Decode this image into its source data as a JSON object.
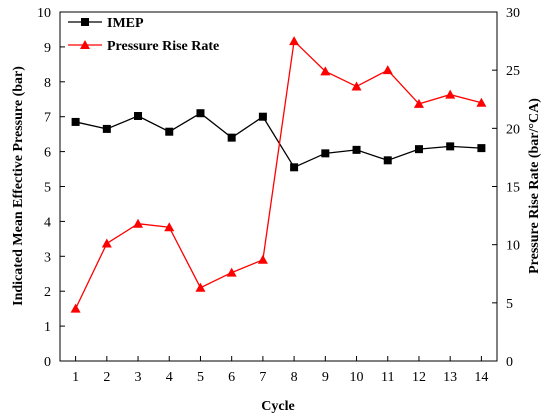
{
  "chart_data": {
    "type": "line",
    "x": [
      1,
      2,
      3,
      4,
      5,
      6,
      7,
      8,
      9,
      10,
      11,
      12,
      13,
      14
    ],
    "xlabel": "Cycle",
    "ylabel": "Indicated Mean Effective Pressure (bar)",
    "y2label": "Pressure Rise Rate (bar/°CA)",
    "xlim": [
      0.5,
      14.5
    ],
    "ylim": [
      0,
      10
    ],
    "y2lim": [
      0,
      30
    ],
    "x_ticks": [
      1,
      2,
      3,
      4,
      5,
      6,
      7,
      8,
      9,
      10,
      11,
      12,
      13,
      14
    ],
    "y_ticks": [
      0,
      1,
      2,
      3,
      4,
      5,
      6,
      7,
      8,
      9,
      10
    ],
    "y2_ticks": [
      0,
      5,
      10,
      15,
      20,
      25,
      30
    ],
    "grid": false,
    "legend_position": "top-left",
    "series": [
      {
        "name": "IMEP",
        "axis": "left",
        "color": "#000000",
        "marker": "square",
        "values": [
          6.85,
          6.65,
          7.02,
          6.57,
          7.1,
          6.4,
          7.0,
          5.55,
          5.95,
          6.05,
          5.75,
          6.07,
          6.15,
          6.1
        ]
      },
      {
        "name": "Pressure Rise Rate",
        "axis": "right",
        "color": "#ff0000",
        "marker": "triangle",
        "values": [
          4.5,
          10.1,
          11.8,
          11.5,
          6.3,
          7.6,
          8.7,
          27.5,
          24.9,
          23.6,
          25.0,
          22.1,
          22.9,
          22.2
        ]
      }
    ]
  }
}
